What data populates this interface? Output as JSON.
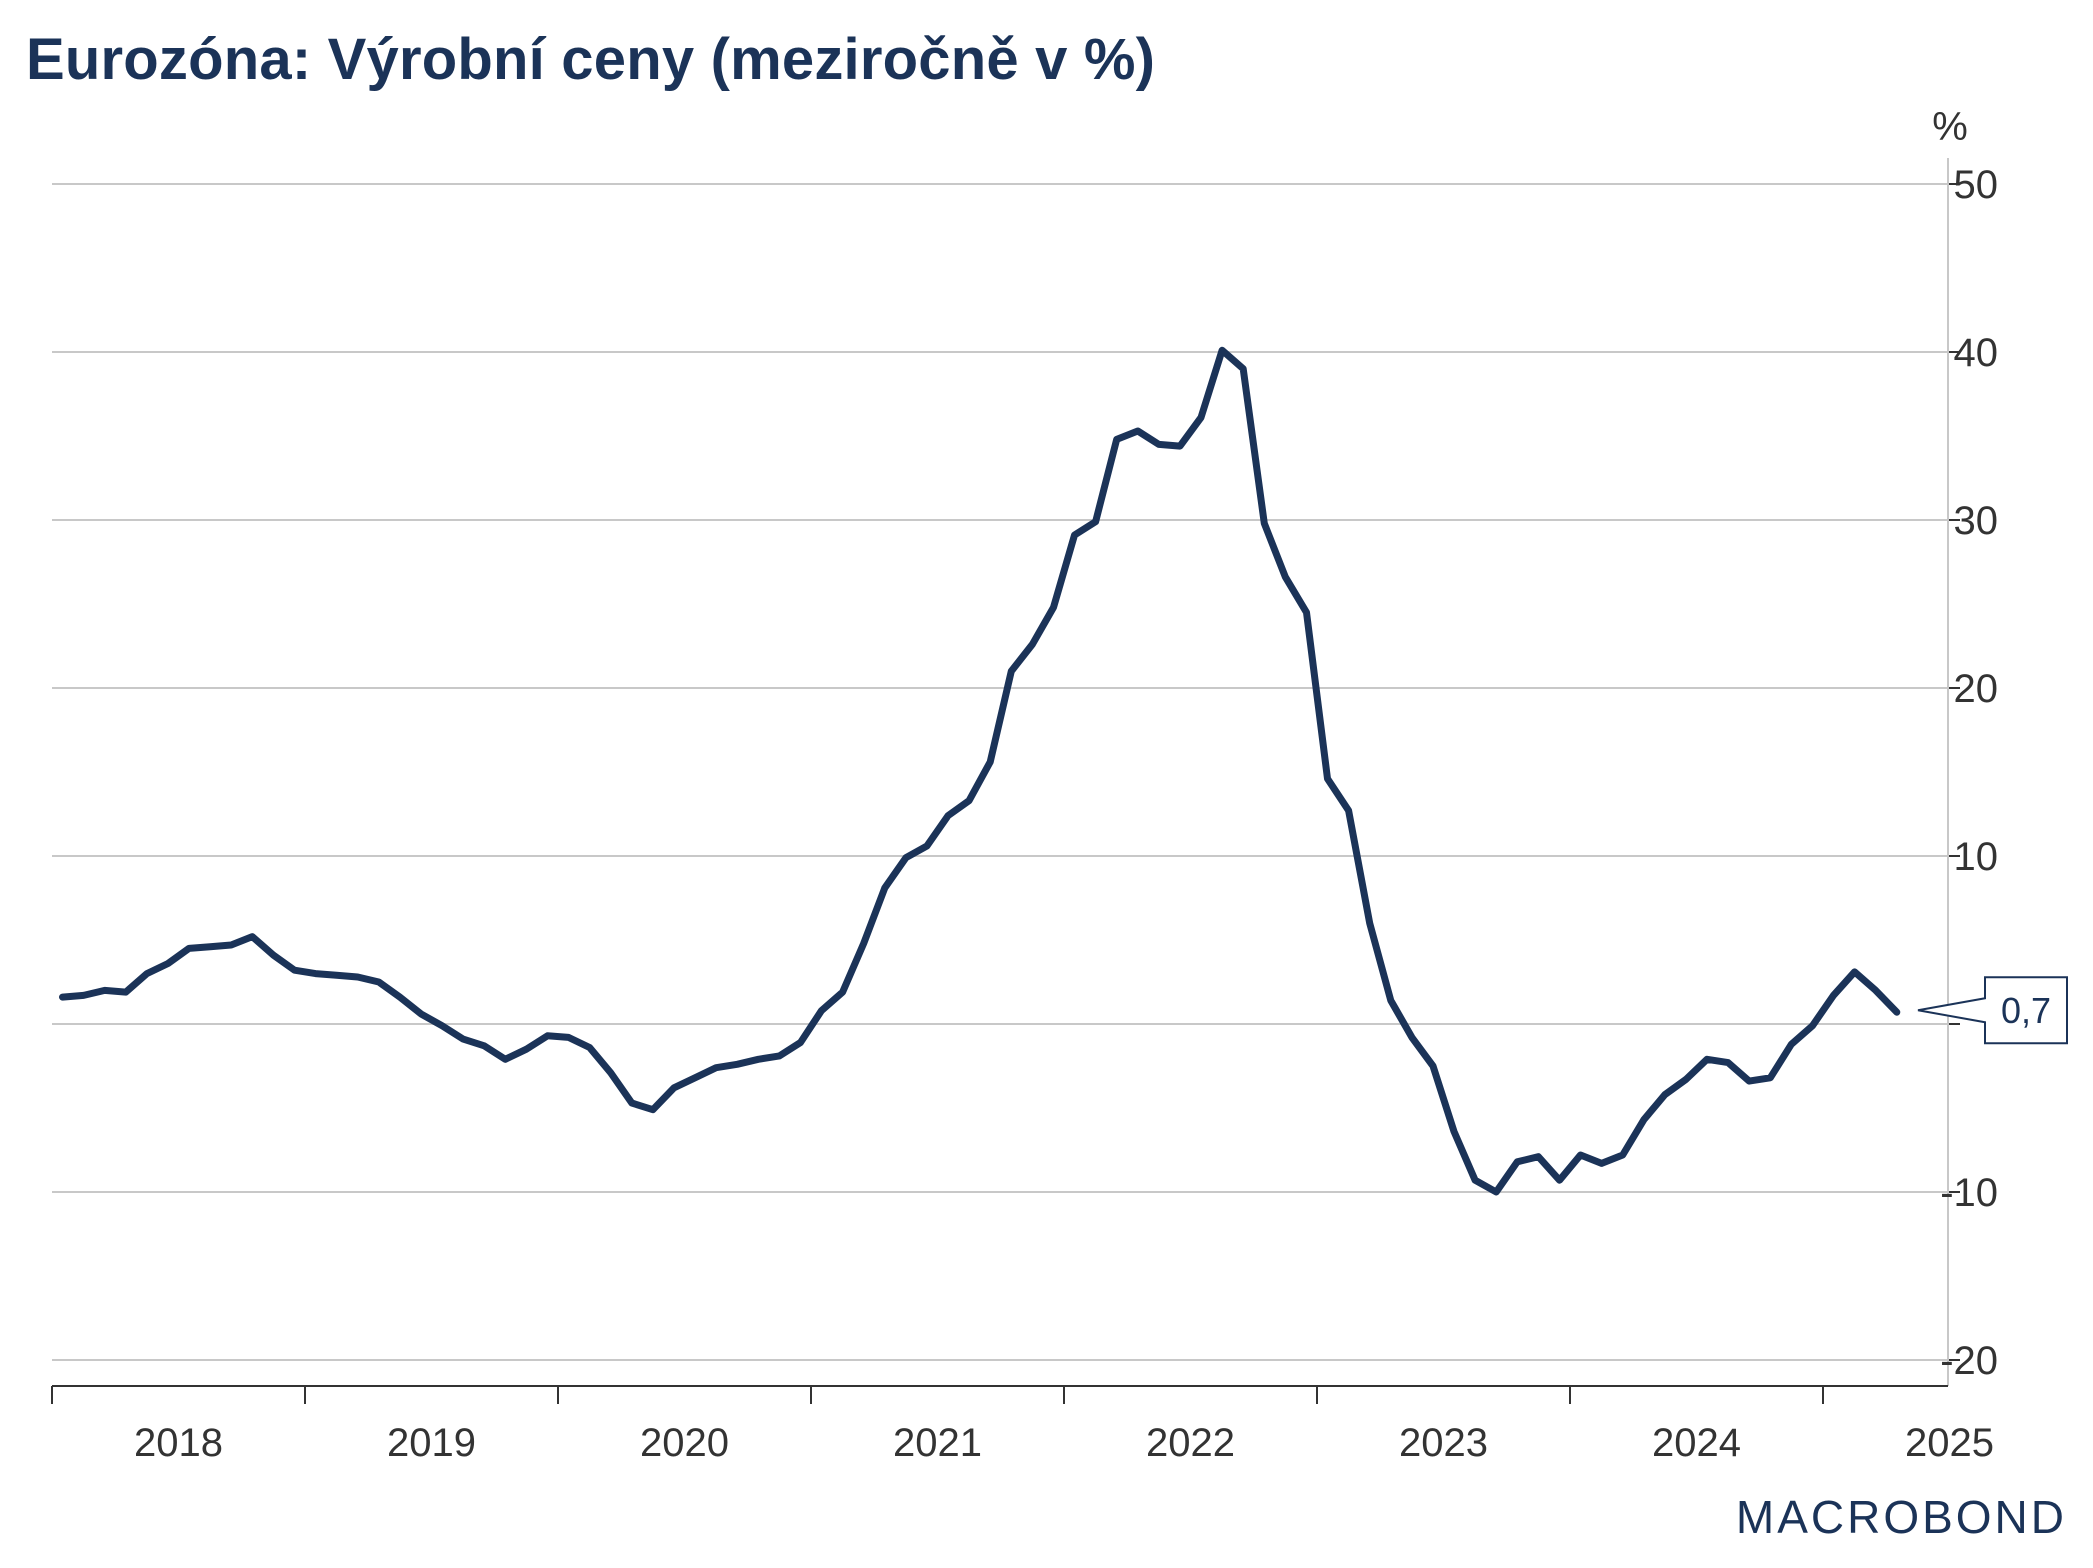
{
  "title": "Eurozóna: Výrobní ceny (meziročně v %)",
  "logo": "MACROBOND",
  "colors": {
    "series": "#1b3358",
    "grid": "#c8c8c8",
    "text": "#333333",
    "title": "#1b3358"
  },
  "chart_data": {
    "type": "line",
    "title": "Eurozóna: Výrobní ceny (meziročně v %)",
    "y_unit": "%",
    "ylim": [
      -20,
      50
    ],
    "y_ticks": [
      "-20",
      "-10",
      "0",
      "10",
      "20",
      "30",
      "40",
      "50"
    ],
    "x_ticks": [
      "2018",
      "2019",
      "2020",
      "2021",
      "2022",
      "2023",
      "2024",
      "2025"
    ],
    "y_axis_position": "right",
    "grid": true,
    "last_value_label": "0,7",
    "series": [
      {
        "x": [
          "2018-01",
          "2018-02",
          "2018-03",
          "2018-04",
          "2018-05",
          "2018-06",
          "2018-07",
          "2018-08",
          "2018-09",
          "2018-10",
          "2018-11",
          "2018-12",
          "2019-01",
          "2019-02",
          "2019-03",
          "2019-04",
          "2019-05",
          "2019-06",
          "2019-07",
          "2019-08",
          "2019-09",
          "2019-10",
          "2019-11",
          "2019-12",
          "2020-01",
          "2020-02",
          "2020-03",
          "2020-04",
          "2020-05",
          "2020-06",
          "2020-07",
          "2020-08",
          "2020-09",
          "2020-10",
          "2020-11",
          "2020-12",
          "2021-01",
          "2021-02",
          "2021-03",
          "2021-04",
          "2021-05",
          "2021-06",
          "2021-07",
          "2021-08",
          "2021-09",
          "2021-10",
          "2021-11",
          "2021-12",
          "2022-01",
          "2022-02",
          "2022-03",
          "2022-04",
          "2022-05",
          "2022-06",
          "2022-07",
          "2022-08",
          "2022-09",
          "2022-10",
          "2022-11",
          "2022-12",
          "2023-01",
          "2023-02",
          "2023-03",
          "2023-04",
          "2023-05",
          "2023-06",
          "2023-07",
          "2023-08",
          "2023-09",
          "2023-10",
          "2023-11",
          "2023-12",
          "2024-01",
          "2024-02",
          "2024-03",
          "2024-04",
          "2024-05",
          "2024-06",
          "2024-07",
          "2024-08",
          "2024-09",
          "2024-10",
          "2024-11",
          "2024-12",
          "2025-01",
          "2025-02",
          "2025-03",
          "2025-04"
        ],
        "values": [
          1.6,
          1.7,
          2.0,
          1.9,
          3.0,
          3.6,
          4.5,
          4.6,
          4.7,
          5.2,
          4.1,
          3.2,
          3.0,
          2.9,
          2.8,
          2.5,
          1.6,
          0.6,
          -0.1,
          -0.9,
          -1.3,
          -2.1,
          -1.5,
          -0.7,
          -0.8,
          -1.4,
          -2.9,
          -4.7,
          -5.1,
          -3.8,
          -3.2,
          -2.6,
          -2.4,
          -2.1,
          -1.9,
          -1.1,
          0.8,
          1.9,
          4.8,
          8.1,
          9.9,
          10.6,
          12.4,
          13.3,
          15.6,
          21.0,
          22.6,
          24.8,
          29.1,
          29.9,
          34.8,
          35.3,
          34.5,
          34.4,
          36.1,
          40.1,
          39.0,
          29.8,
          26.6,
          24.5,
          14.6,
          12.7,
          6.0,
          1.4,
          -0.8,
          -2.5,
          -6.4,
          -9.3,
          -10.0,
          -8.2,
          -7.9,
          -9.3,
          -7.8,
          -8.3,
          -7.8,
          -5.7,
          -4.2,
          -3.3,
          -2.1,
          -2.3,
          -3.4,
          -3.2,
          -1.2,
          -0.1,
          1.7,
          3.1,
          2.0,
          0.7
        ]
      }
    ]
  }
}
